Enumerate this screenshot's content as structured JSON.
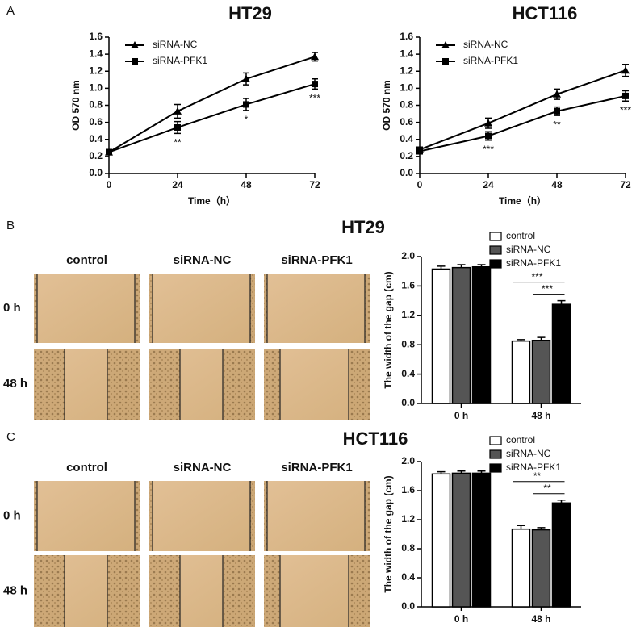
{
  "panel_labels": [
    "A",
    "B",
    "C"
  ],
  "micrographs": [
    {
      "columns": [
        "control",
        "siRNA-NC",
        "siRNA-PFK1"
      ],
      "rows": [
        "0 h",
        "48 h"
      ]
    },
    {
      "columns": [
        "control",
        "siRNA-NC",
        "siRNA-PFK1"
      ],
      "rows": [
        "0 h",
        "48 h"
      ]
    }
  ],
  "chart_data": [
    {
      "type": "line",
      "title": "HT29",
      "x_label": "Time（h）",
      "y_label": "OD 570 nm",
      "x": [
        0,
        24,
        48,
        72
      ],
      "xlim": [
        0,
        72
      ],
      "xticks": [
        0,
        24,
        48,
        72
      ],
      "ylim": [
        0,
        1.6
      ],
      "yticks": [
        {
          "value": 0,
          "label": "0.0"
        },
        0.2,
        0.4,
        0.6,
        0.8,
        {
          "value": 1,
          "label": "1.0"
        },
        1.2,
        1.4,
        1.6
      ],
      "series": [
        {
          "name": "siRNA-NC",
          "color": "#000000",
          "marker": "triangle",
          "values": [
            0.25,
            0.73,
            1.11,
            1.37
          ],
          "errors": [
            0.03,
            0.08,
            0.07,
            0.05
          ]
        },
        {
          "name": "siRNA-PFK1",
          "color": "#000000",
          "marker": "square",
          "values": [
            0.25,
            0.54,
            0.81,
            1.05
          ],
          "errors": [
            0.03,
            0.07,
            0.07,
            0.06
          ]
        }
      ],
      "significance": [
        null,
        "**",
        "*",
        "***"
      ],
      "legend": "upper left"
    },
    {
      "type": "line",
      "title": "HCT116",
      "x_label": "Time（h）",
      "y_label": "OD 570 nm",
      "x": [
        0,
        24,
        48,
        72
      ],
      "xlim": [
        0,
        72
      ],
      "xticks": [
        0,
        24,
        48,
        72
      ],
      "ylim": [
        0,
        1.6
      ],
      "yticks": [
        {
          "value": 0,
          "label": "0.0"
        },
        0.2,
        0.4,
        0.6,
        0.8,
        {
          "value": 1,
          "label": "1.0"
        },
        1.2,
        1.4,
        1.6
      ],
      "series": [
        {
          "name": "siRNA-NC",
          "color": "#000000",
          "marker": "triangle",
          "values": [
            0.28,
            0.59,
            0.93,
            1.21
          ],
          "errors": [
            0.03,
            0.06,
            0.06,
            0.07
          ]
        },
        {
          "name": "siRNA-PFK1",
          "color": "#000000",
          "marker": "square",
          "values": [
            0.26,
            0.44,
            0.73,
            0.91
          ],
          "errors": [
            0.03,
            0.05,
            0.05,
            0.06
          ]
        }
      ],
      "significance": [
        null,
        "***",
        "**",
        "***"
      ],
      "legend": "upper left"
    },
    {
      "type": "bar",
      "title": "HT29",
      "y_label": "The width of the gap (cm)",
      "categories": [
        "0 h",
        "48 h"
      ],
      "ylim": [
        0,
        2
      ],
      "yticks": [
        {
          "value": 0,
          "label": "0.0"
        },
        0.4,
        0.8,
        1.2,
        1.6,
        {
          "value": 2,
          "label": "2.0"
        }
      ],
      "series": [
        {
          "name": "control",
          "color": "#ffffff",
          "values": [
            1.83,
            0.85
          ],
          "errors": [
            0.04,
            0.02
          ]
        },
        {
          "name": "siRNA-NC",
          "color": "#555555",
          "values": [
            1.85,
            0.86
          ],
          "errors": [
            0.04,
            0.04
          ]
        },
        {
          "name": "siRNA-PFK1",
          "color": "#000000",
          "values": [
            1.86,
            1.35
          ],
          "errors": [
            0.03,
            0.05
          ]
        }
      ],
      "annotations": [
        "***",
        "***"
      ],
      "legend": "top"
    },
    {
      "type": "bar",
      "title": "HCT116",
      "y_label": "The width of the gap (cm)",
      "categories": [
        "0 h",
        "48 h"
      ],
      "ylim": [
        0,
        2
      ],
      "yticks": [
        {
          "value": 0,
          "label": "0.0"
        },
        0.4,
        0.8,
        1.2,
        1.6,
        {
          "value": 2,
          "label": "2.0"
        }
      ],
      "series": [
        {
          "name": "control",
          "color": "#ffffff",
          "values": [
            1.83,
            1.07
          ],
          "errors": [
            0.03,
            0.05
          ]
        },
        {
          "name": "siRNA-NC",
          "color": "#555555",
          "values": [
            1.84,
            1.06
          ],
          "errors": [
            0.03,
            0.03
          ]
        },
        {
          "name": "siRNA-PFK1",
          "color": "#000000",
          "values": [
            1.84,
            1.43
          ],
          "errors": [
            0.03,
            0.04
          ]
        }
      ],
      "annotations": [
        "**",
        "**"
      ],
      "legend": "top"
    }
  ]
}
